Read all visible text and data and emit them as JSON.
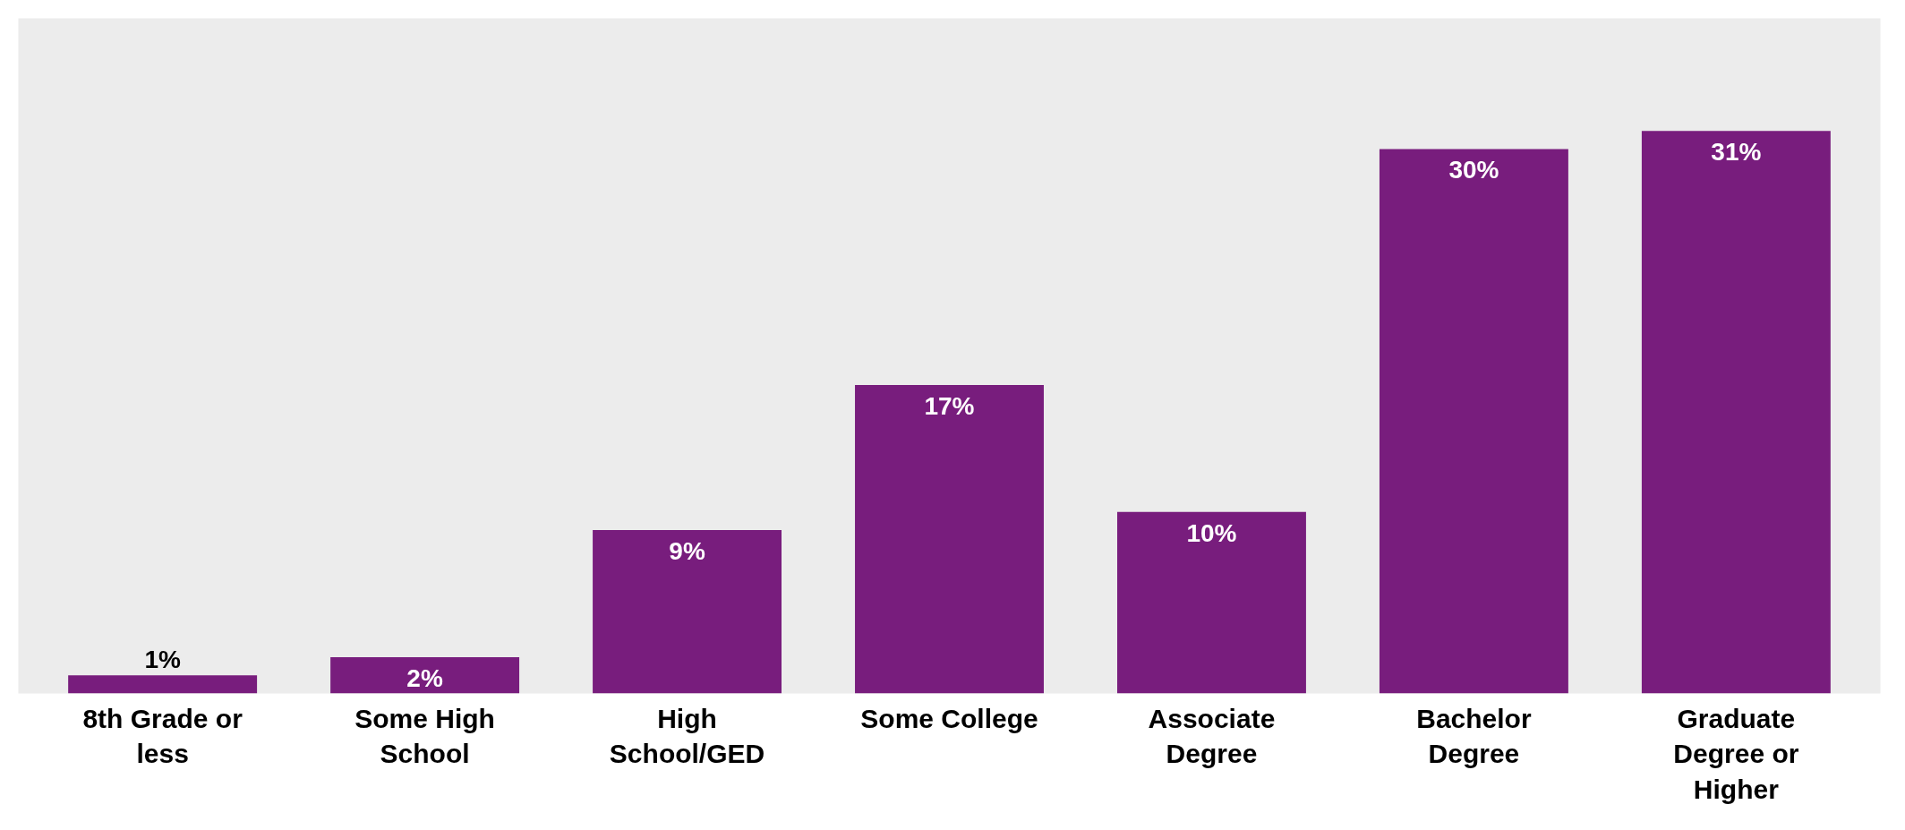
{
  "chart_data": {
    "type": "bar",
    "categories": [
      "8th Grade or less",
      "Some High School",
      "High School/GED",
      "Some College",
      "Associate Degree",
      "Bachelor Degree",
      "Graduate Degree or Higher"
    ],
    "values": [
      1,
      2,
      9,
      17,
      10,
      30,
      31
    ],
    "color": "#781d7d",
    "data_labels": true,
    "value_labels": [
      "1%",
      "2%",
      "9%",
      "17%",
      "10%",
      "30%",
      "31%"
    ],
    "grid": false,
    "tick_labels": "x"
  }
}
